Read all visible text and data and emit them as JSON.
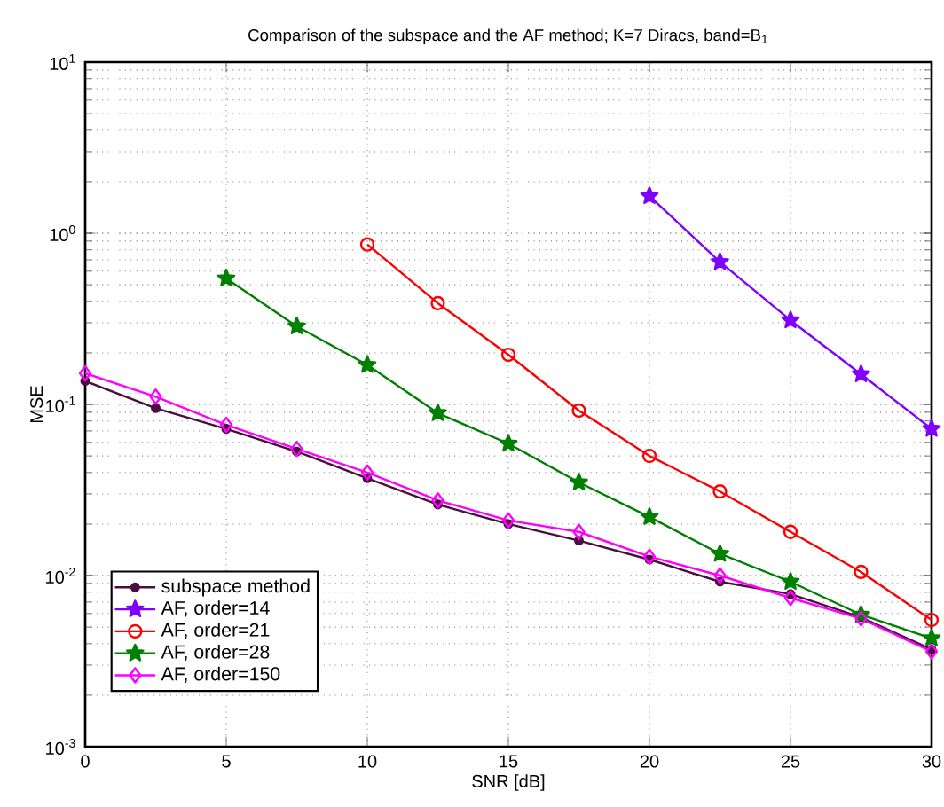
{
  "chart_data": {
    "type": "line",
    "title": "Comparison of the subspace and the AF method; K=7 Diracs, band=B$_{1}$",
    "xlabel": "SNR [dB]",
    "ylabel": "MSE",
    "x": [
      0,
      2.5,
      5,
      7.5,
      10,
      12.5,
      15,
      17.5,
      20,
      22.5,
      25,
      27.5,
      30
    ],
    "series": [
      {
        "name": "subspace method",
        "color": "#4b0f3f",
        "marker": "circle",
        "values": [
          0.137,
          0.095,
          0.072,
          0.053,
          0.037,
          0.026,
          0.02,
          0.016,
          0.0124,
          0.0092,
          0.0078,
          0.0057,
          0.0037
        ]
      },
      {
        "name": "AF, order=14",
        "color": "#8000ff",
        "marker": "star",
        "values": [
          null,
          null,
          null,
          null,
          null,
          null,
          null,
          null,
          1.65,
          0.68,
          0.31,
          0.15,
          0.072
        ]
      },
      {
        "name": "AF, order=21",
        "color": "#ff0000",
        "marker": "circle_open",
        "values": [
          null,
          null,
          null,
          null,
          0.86,
          0.39,
          0.195,
          0.092,
          0.05,
          0.031,
          0.018,
          0.0105,
          0.0055
        ]
      },
      {
        "name": "AF, order=28",
        "color": "#008000",
        "marker": "star",
        "values": [
          null,
          null,
          0.545,
          0.286,
          0.17,
          0.089,
          0.059,
          0.035,
          0.022,
          0.0134,
          0.0092,
          0.0059,
          0.0043
        ]
      },
      {
        "name": "AF, order=150",
        "color": "#ff00ff",
        "marker": "diamond",
        "values": [
          0.152,
          0.111,
          0.076,
          0.055,
          0.04,
          0.0275,
          0.021,
          0.018,
          0.0129,
          0.01,
          0.0074,
          0.0056,
          0.0036
        ]
      }
    ],
    "xlim": [
      0,
      30
    ],
    "xticks": [
      0,
      5,
      10,
      15,
      20,
      25,
      30
    ],
    "ylim": [
      0.001,
      10
    ],
    "yticks": [
      {
        "value": 0.001,
        "label": "10$^{-3}$"
      },
      {
        "value": 0.01,
        "label": "10$^{-2}$"
      },
      {
        "value": 0.1,
        "label": "10$^{-1}$"
      },
      {
        "value": 1,
        "label": "10$^{0}$"
      },
      {
        "value": 10,
        "label": "10$^{1}$"
      }
    ],
    "log": "y",
    "grid": true,
    "legend": "bottom left",
    "line_style": "solid"
  }
}
